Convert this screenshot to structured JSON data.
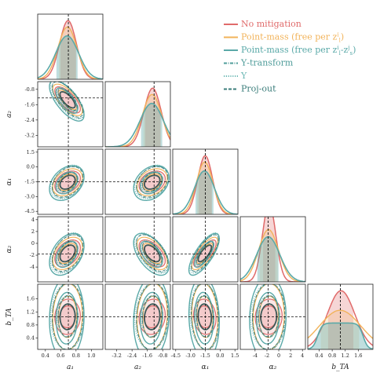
{
  "chart_data": {
    "type": "corner",
    "parameters": [
      {
        "key": "a1",
        "label": "a₁",
        "truth": 0.7,
        "range": [
          0.3,
          1.15
        ],
        "ticks": [
          "0.4",
          "0.6",
          "0.8",
          "1.0"
        ],
        "tickvals": [
          0.4,
          0.6,
          0.8,
          1.0
        ]
      },
      {
        "key": "a2",
        "label": "a₂",
        "truth": -1.25,
        "range": [
          -3.8,
          -0.4
        ],
        "ticks": [
          "-3.2",
          "-2.4",
          "-1.6",
          "-0.8"
        ],
        "tickvals": [
          -3.2,
          -2.4,
          -1.6,
          -0.8
        ]
      },
      {
        "key": "alpha1",
        "label": "α₁",
        "truth": -1.5,
        "range": [
          -4.8,
          1.8
        ],
        "ticks": [
          "-4.5",
          "-3.0",
          "-1.5",
          "0.0",
          "1.5"
        ],
        "tickvals": [
          -4.5,
          -3.0,
          -1.5,
          0.0,
          1.5
        ]
      },
      {
        "key": "alpha2",
        "label": "α₂",
        "truth": -1.8,
        "range": [
          -6.5,
          4.5
        ],
        "ticks": [
          "-4",
          "-2",
          "0",
          "2",
          "4"
        ],
        "tickvals": [
          -4,
          -2,
          0,
          2,
          4
        ]
      },
      {
        "key": "bTA",
        "label": "b_TA",
        "truth": 1.05,
        "range": [
          0.05,
          2.05
        ],
        "ticks": [
          "0.4",
          "0.8",
          "1.2",
          "1.6"
        ],
        "tickvals": [
          0.4,
          0.8,
          1.2,
          1.6
        ]
      }
    ],
    "series": [
      {
        "name": "No mitigation",
        "color": "#e06a6a",
        "style": "solid",
        "width": 1.6
      },
      {
        "name": "Point-mass (free per z_l^i)",
        "color": "#f2b35a",
        "style": "solid",
        "width": 1.6
      },
      {
        "name": "Point-mass (free per z_l^i–z_s^j)",
        "color": "#5aa9a8",
        "style": "solid",
        "width": 1.8
      },
      {
        "name": "Υ-transform",
        "color": "#4f9c9a",
        "style": "dashdot",
        "width": 1.1
      },
      {
        "name": "Υ",
        "color": "#6db9b5",
        "style": "dotted",
        "width": 1.1
      },
      {
        "name": "Proj-out",
        "color": "#3b7d7b",
        "style": "dashed",
        "width": 1.1
      }
    ],
    "legend_position": "top-right",
    "truth_lines": true
  },
  "legend": {
    "items": [
      {
        "text": "No mitigation",
        "color": "#e06a6a",
        "style": "solid"
      },
      {
        "text": "Point-mass (free per z",
        "sup": "i",
        "sub": "l",
        "tail": ")",
        "color": "#f2b35a",
        "style": "solid"
      },
      {
        "text": "Point-mass (free per z",
        "sup": "i",
        "sub": "l",
        "tail2": "-z",
        "sup2": "j",
        "sub2": "s",
        "tail": ")",
        "color": "#5aa9a8",
        "style": "solid"
      },
      {
        "text": "Υ-transform",
        "color": "#4f9c9a",
        "style": "dashdot"
      },
      {
        "text": "Υ",
        "color": "#6db9b5",
        "style": "dotted"
      },
      {
        "text": "Proj-out",
        "color": "#3b7d7b",
        "style": "dashed"
      }
    ]
  },
  "colors": {
    "red": "#e06a6a",
    "orange": "#f2b35a",
    "teal": "#5aa9a8",
    "dark": "#3d5a58",
    "truth": "#111111"
  }
}
